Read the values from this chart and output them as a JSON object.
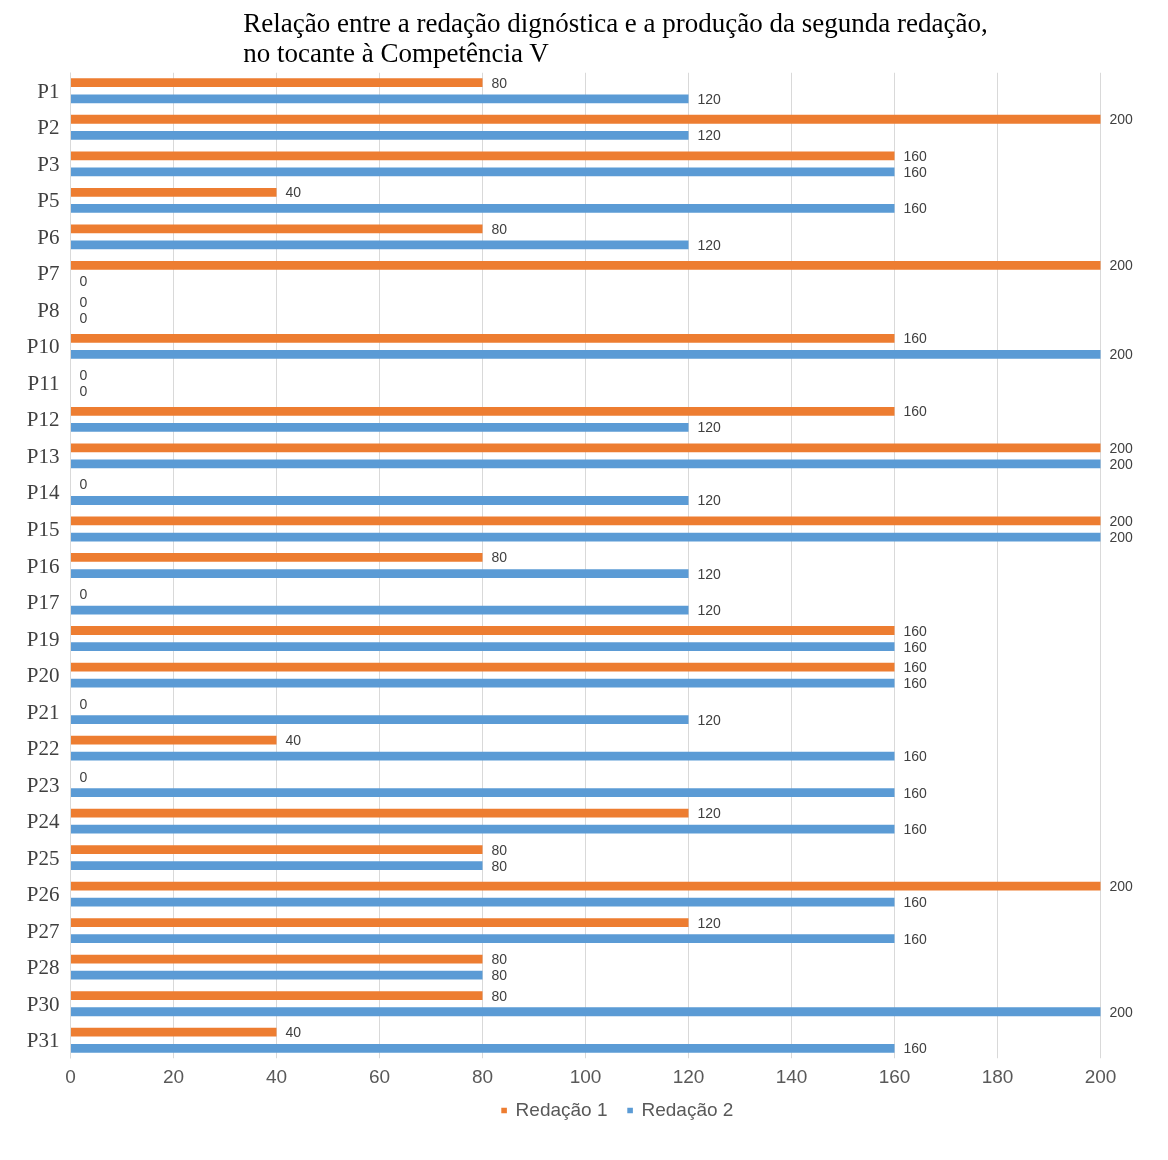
{
  "chart_data": {
    "type": "bar",
    "orientation": "horizontal",
    "title": "Relação entre a redação dignóstica e a produção da segunda redação,\nno tocante à Competência V",
    "categories": [
      "P1",
      "P2",
      "P3",
      "P5",
      "P6",
      "P7",
      "P8",
      "P10",
      "P11",
      "P12",
      "P13",
      "P14",
      "P15",
      "P16",
      "P17",
      "P19",
      "P20",
      "P21",
      "P22",
      "P23",
      "P24",
      "P25",
      "P26",
      "P27",
      "P28",
      "P30",
      "P31"
    ],
    "series": [
      {
        "name": "Redação 1",
        "color": "#ed7d31",
        "values": [
          80,
          200,
          160,
          40,
          80,
          200,
          0,
          160,
          0,
          160,
          200,
          0,
          200,
          80,
          0,
          160,
          160,
          0,
          40,
          0,
          120,
          80,
          200,
          120,
          80,
          80,
          40
        ]
      },
      {
        "name": "Redação 2",
        "color": "#5b9bd5",
        "values": [
          120,
          120,
          160,
          160,
          120,
          0,
          0,
          200,
          0,
          120,
          200,
          120,
          200,
          120,
          120,
          160,
          160,
          120,
          160,
          160,
          160,
          80,
          160,
          160,
          80,
          200,
          160
        ]
      }
    ],
    "xlim": [
      0,
      200
    ],
    "xticks": [
      0,
      20,
      40,
      60,
      80,
      100,
      120,
      140,
      160,
      180,
      200
    ],
    "grid": "x",
    "legend": "bottom",
    "data_labels": true
  }
}
